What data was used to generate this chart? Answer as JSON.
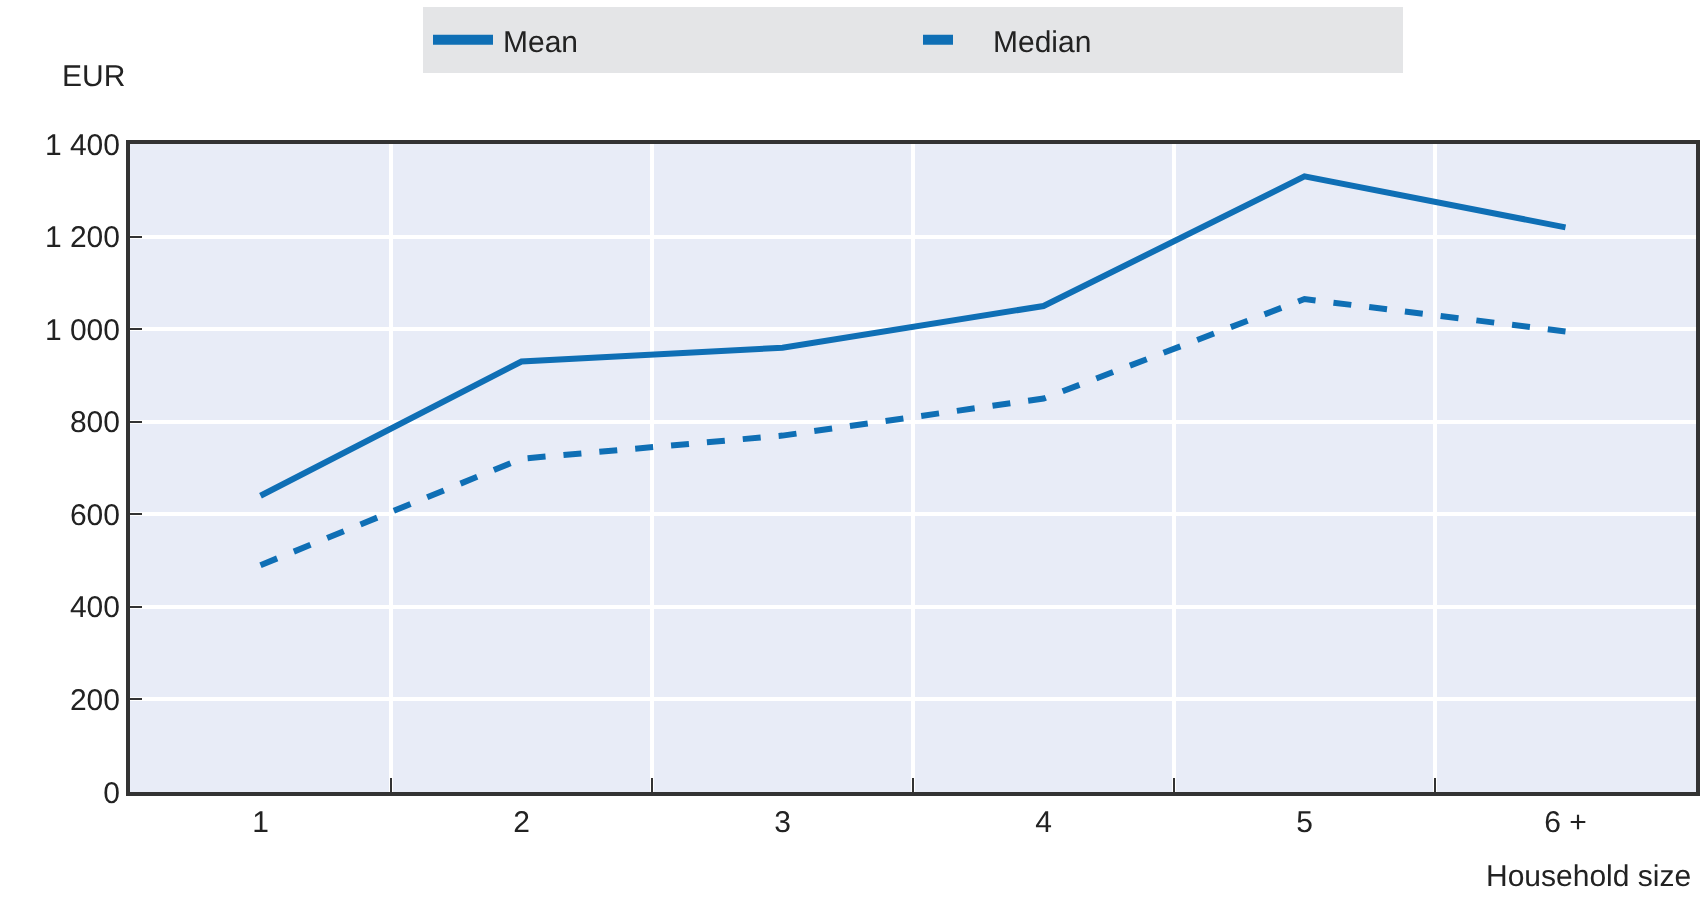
{
  "chart_data": {
    "type": "line",
    "xlabel": "Household size",
    "ylabel": "EUR",
    "categories": [
      "1",
      "2",
      "3",
      "4",
      "5",
      "6 +"
    ],
    "series": [
      {
        "name": "Mean",
        "color": "#0f6fb5",
        "line_style": "solid",
        "values": [
          640,
          930,
          960,
          1050,
          1330,
          1220
        ]
      },
      {
        "name": "Median",
        "color": "#0f6fb5",
        "line_style": "dashed",
        "values": [
          490,
          720,
          770,
          850,
          1065,
          995
        ]
      }
    ],
    "ylim": [
      0,
      1400
    ],
    "yticks": [
      0,
      200,
      400,
      600,
      800,
      {
        "value": 1000,
        "label": "1 000"
      },
      {
        "value": 1200,
        "label": "1 200"
      },
      {
        "value": 1400,
        "label": "1 400"
      }
    ],
    "grid": true,
    "legend": "top",
    "marker": "none"
  }
}
